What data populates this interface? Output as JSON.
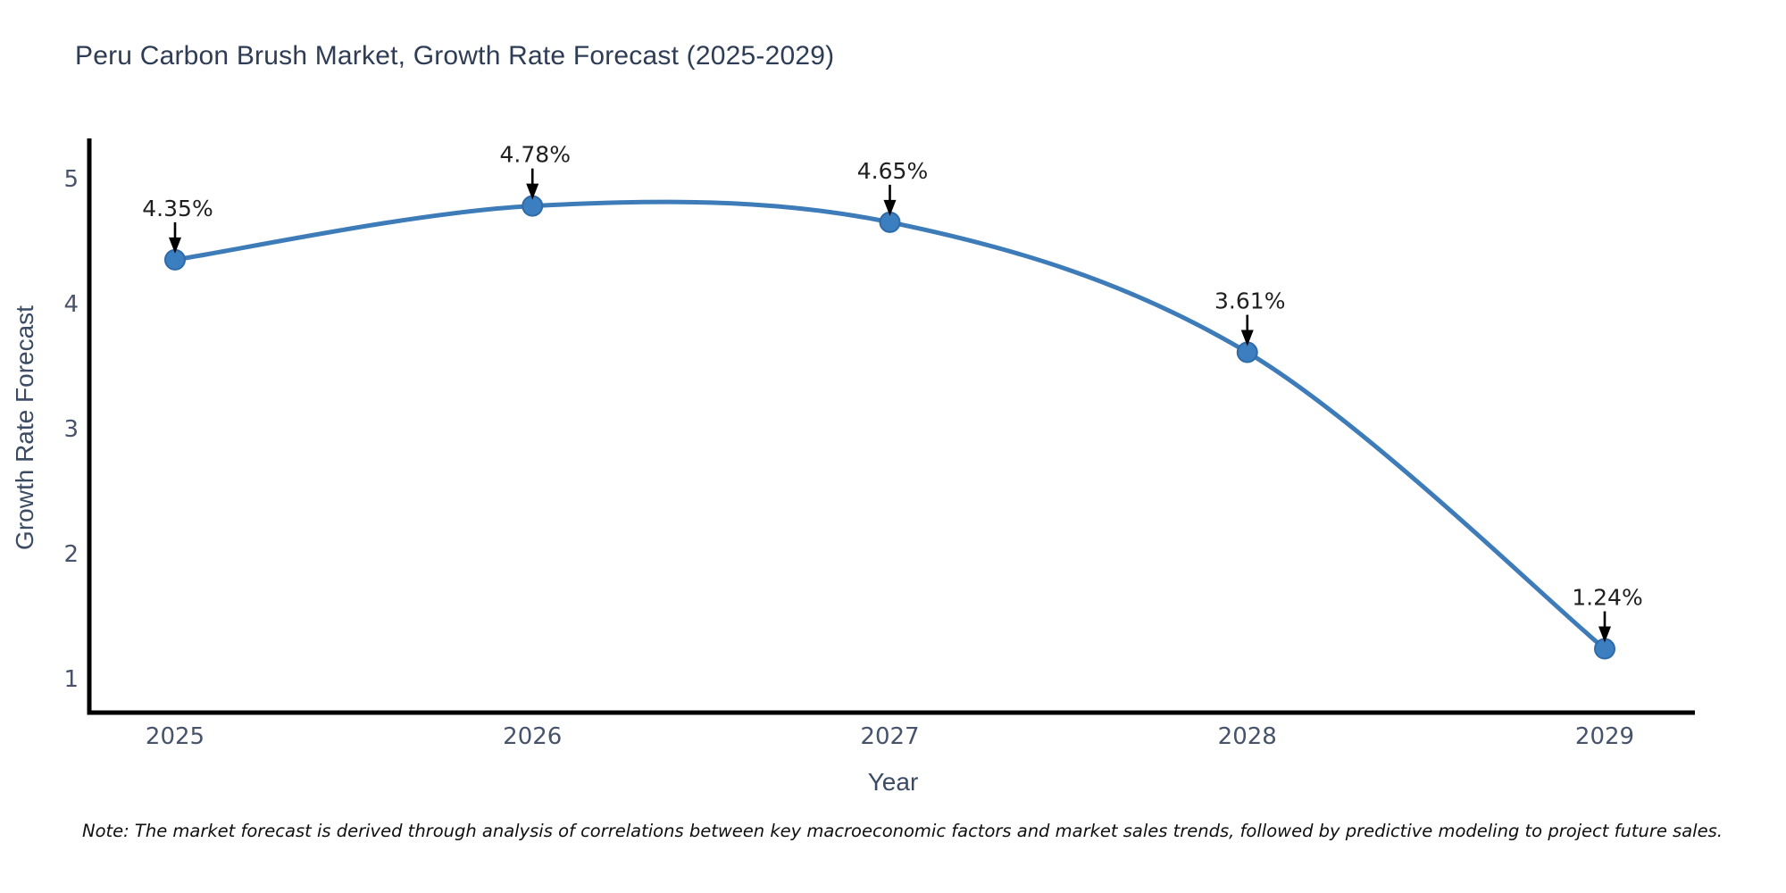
{
  "page": {
    "background_color": "#ffffff"
  },
  "chart_data": {
    "type": "line",
    "title": "Peru Carbon Brush Market, Growth Rate Forecast (2025-2029)",
    "xlabel": "Year",
    "ylabel": "Growth Rate Forecast",
    "categories": [
      "2025",
      "2026",
      "2027",
      "2028",
      "2029"
    ],
    "series": [
      {
        "name": "Growth Rate Forecast",
        "values": [
          4.35,
          4.78,
          4.65,
          3.61,
          1.24
        ]
      }
    ],
    "point_labels": [
      "4.35%",
      "4.78%",
      "4.65%",
      "3.61%",
      "1.24%"
    ],
    "yticks": [
      "1",
      "2",
      "3",
      "4",
      "5"
    ],
    "ytick_values": [
      1,
      2,
      3,
      4,
      5
    ],
    "ylim": [
      0.73,
      5.32
    ],
    "grid": false,
    "legend_position": "none",
    "marker_shape": "circle",
    "annotation_style": "downward-black-arrows",
    "colors": {
      "line": "#3d7cb8",
      "marker_fill": "#3b7fc0",
      "marker_edge": "#2f6ba6",
      "spine": "#000000",
      "tick_label": "#47536b",
      "annotation_text": "#1f1f1f",
      "arrow": "#000000",
      "title": "#2e3c55",
      "axis_label": "#3a4b63"
    }
  },
  "footnote": {
    "text": "Note: The market forecast is derived through analysis of correlations between key macroeconomic factors and market sales trends, followed by predictive modeling to project future sales."
  }
}
